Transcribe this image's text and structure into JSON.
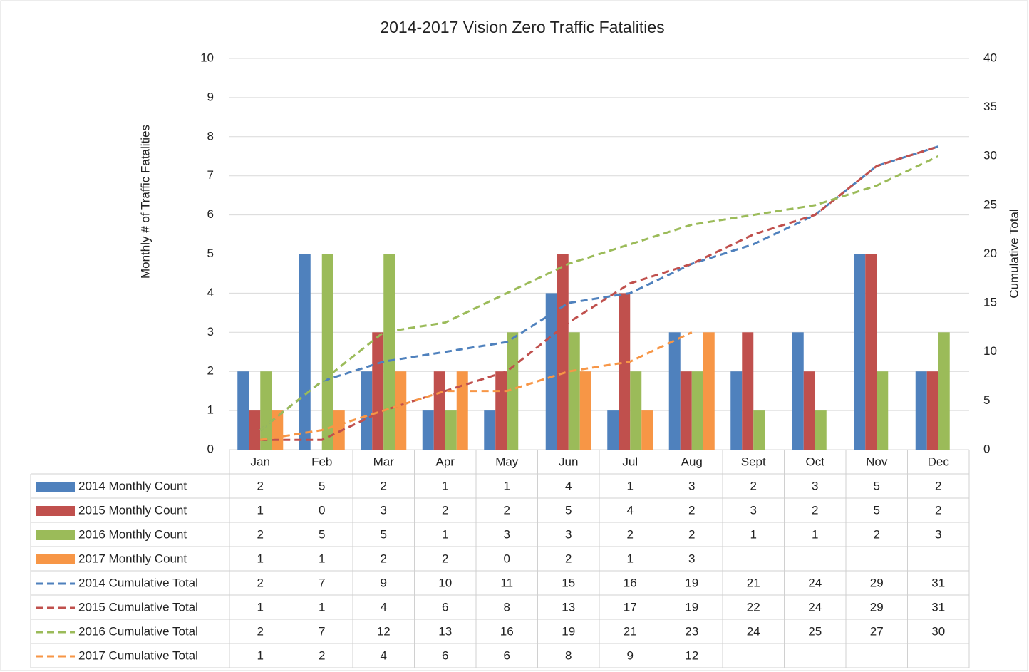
{
  "chart_data": {
    "type": "bar-line-table",
    "title": "2014-2017 Vision Zero Traffic Fatalities",
    "ylabel": "Monthly # of Traffic Fatalities",
    "y2label": "Cumulative Total",
    "categories": [
      "Jan",
      "Feb",
      "Mar",
      "Apr",
      "May",
      "Jun",
      "Jul",
      "Aug",
      "Sept",
      "Oct",
      "Nov",
      "Dec"
    ],
    "ylim": [
      0,
      10
    ],
    "yticks": [
      0,
      1,
      2,
      3,
      4,
      5,
      6,
      7,
      8,
      9,
      10
    ],
    "y2lim": [
      0,
      40
    ],
    "y2ticks": [
      0,
      5,
      10,
      15,
      20,
      25,
      30,
      35,
      40
    ],
    "grid": true,
    "series": [
      {
        "name": "2014 Monthly Count",
        "type": "bar",
        "color": "#4f81bd",
        "values": [
          2,
          5,
          2,
          1,
          1,
          4,
          1,
          3,
          2,
          3,
          5,
          2
        ]
      },
      {
        "name": "2015 Monthly Count",
        "type": "bar",
        "color": "#c0504d",
        "values": [
          1,
          0,
          3,
          2,
          2,
          5,
          4,
          2,
          3,
          2,
          5,
          2
        ]
      },
      {
        "name": "2016 Monthly Count",
        "type": "bar",
        "color": "#9bbb59",
        "values": [
          2,
          5,
          5,
          1,
          3,
          3,
          2,
          2,
          1,
          1,
          2,
          3
        ]
      },
      {
        "name": "2017 Monthly Count",
        "type": "bar",
        "color": "#f79646",
        "values": [
          1,
          1,
          2,
          2,
          0,
          2,
          1,
          3,
          null,
          null,
          null,
          null
        ]
      },
      {
        "name": "2014 Cumulative Total",
        "type": "line",
        "axis": "y2",
        "color": "#4f81bd",
        "values": [
          2,
          7,
          9,
          10,
          11,
          15,
          16,
          19,
          21,
          24,
          29,
          31
        ]
      },
      {
        "name": "2015 Cumulative Total",
        "type": "line",
        "axis": "y2",
        "color": "#c0504d",
        "values": [
          1,
          1,
          4,
          6,
          8,
          13,
          17,
          19,
          22,
          24,
          29,
          31
        ]
      },
      {
        "name": "2016 Cumulative Total",
        "type": "line",
        "axis": "y2",
        "color": "#9bbb59",
        "values": [
          2,
          7,
          12,
          13,
          16,
          19,
          21,
          23,
          24,
          25,
          27,
          30
        ]
      },
      {
        "name": "2017 Cumulative Total",
        "type": "line",
        "axis": "y2",
        "color": "#f79646",
        "values": [
          1,
          2,
          4,
          6,
          6,
          8,
          9,
          12,
          null,
          null,
          null,
          null
        ]
      }
    ]
  }
}
